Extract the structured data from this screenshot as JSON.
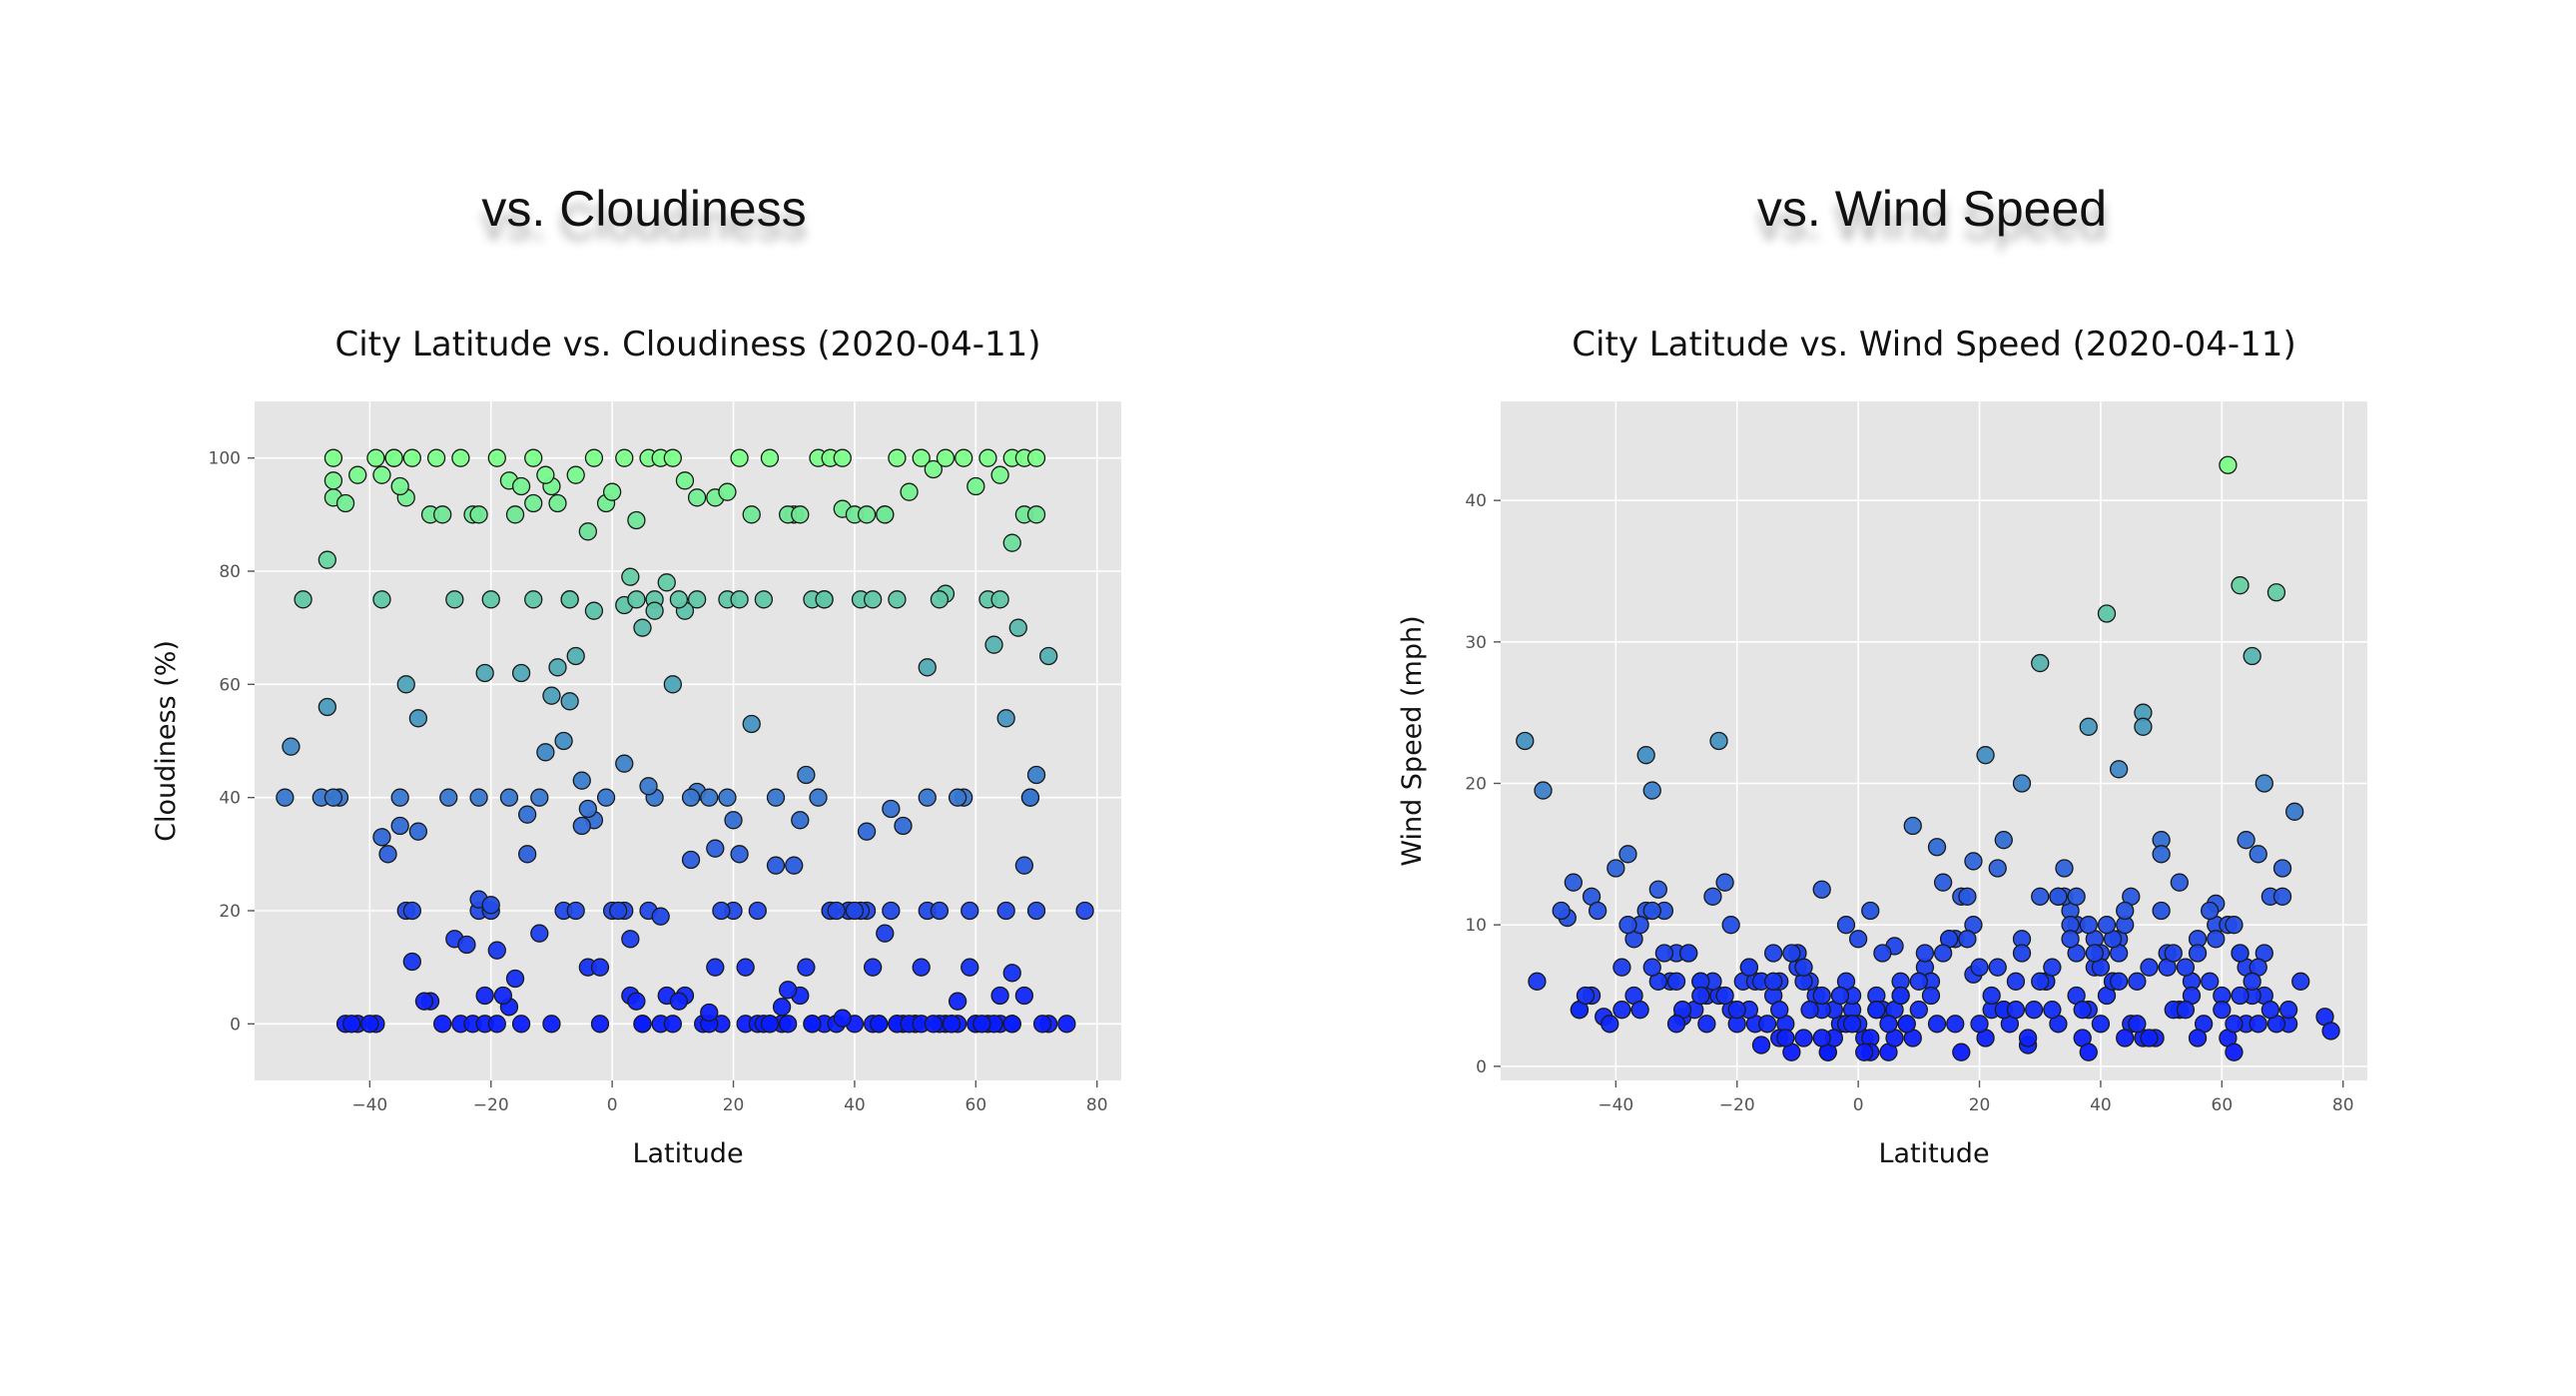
{
  "page": {
    "left_heading": "vs. Cloudiness",
    "right_heading": "vs. Wind Speed"
  },
  "chart_data": [
    {
      "type": "scatter",
      "title": "City Latitude vs. Cloudiness (2020-04-11)",
      "xlabel": "Latitude",
      "ylabel": "Cloudiness (%)",
      "xlim": [
        -59,
        84
      ],
      "ylim": [
        -10,
        110
      ],
      "xticks": [
        -40,
        -20,
        0,
        20,
        40,
        60,
        80
      ],
      "yticks": [
        0,
        20,
        40,
        60,
        80,
        100
      ],
      "grid": true,
      "colormap": [
        "#0a1cff",
        "#7cff8a"
      ],
      "x": [
        -54,
        -48,
        -45,
        -44,
        -42,
        -39,
        -38,
        -35,
        -34,
        -33,
        -30,
        -28,
        -26,
        -25,
        -23,
        -22,
        -21,
        -20,
        -19,
        -17,
        -15,
        -12,
        -10,
        -8,
        -6,
        -4,
        -2,
        0,
        2,
        3,
        5,
        6,
        8,
        10,
        12,
        15,
        17,
        18,
        20,
        22,
        24,
        26,
        28,
        30,
        32,
        33,
        35,
        37,
        39,
        40,
        42,
        44,
        46,
        48,
        50,
        52,
        54,
        56,
        58,
        60,
        62,
        64,
        65,
        66,
        68,
        70,
        72,
        75,
        78,
        -53,
        -47,
        -46,
        -43,
        -40,
        -37,
        -35,
        -33,
        -31,
        -27,
        -24,
        -22,
        -21,
        -19,
        -17,
        -16,
        -14,
        -12,
        -10,
        -7,
        -5,
        -3,
        -1,
        1,
        3,
        5,
        7,
        9,
        11,
        13,
        16,
        18,
        21,
        24,
        27,
        29,
        31,
        33,
        36,
        38,
        41,
        43,
        45,
        47,
        50,
        52,
        55,
        57,
        60,
        63,
        66,
        69,
        71,
        -51,
        -46,
        -38,
        -34,
        -32,
        -22,
        -20,
        -18,
        -14,
        -11,
        -8,
        -6,
        -4,
        -2,
        2,
        4,
        6,
        8,
        10,
        14,
        16,
        19,
        22,
        25,
        28,
        31,
        34,
        36,
        39,
        42,
        44,
        47,
        49,
        51,
        54,
        56,
        59,
        61,
        64,
        66,
        68,
        70,
        -47,
        -36,
        -34,
        -21,
        -15,
        -13,
        -9,
        -7,
        -5,
        -3,
        3,
        5,
        7,
        12,
        14,
        17,
        20,
        23,
        26,
        29,
        32,
        35,
        37,
        40,
        43,
        46,
        48,
        51,
        53,
        55,
        57,
        59,
        63,
        65,
        67,
        69,
        -46,
        -44,
        -38,
        -35,
        -32,
        -29,
        -26,
        -23,
        -20,
        -16,
        -13,
        -10,
        -7,
        -4,
        -1,
        2,
        4,
        7,
        9,
        11,
        13,
        16,
        19,
        21,
        25,
        27,
        30,
        33,
        35,
        38,
        41,
        43,
        45,
        47,
        52,
        54,
        57,
        62,
        64,
        66,
        68,
        70,
        72,
        -46,
        -42,
        -39,
        -36,
        -33,
        -30,
        -28,
        -25,
        -22,
        -19,
        -17,
        -15,
        -13,
        -11,
        -9,
        -6,
        -3,
        0,
        2,
        4,
        6,
        8,
        10,
        12,
        14,
        17,
        19,
        21,
        23,
        26,
        29,
        31,
        34,
        36,
        38,
        40,
        42,
        45,
        47,
        49,
        51,
        53,
        55,
        58,
        60,
        62,
        64,
        66,
        68,
        70
      ],
      "y": [
        40,
        40,
        40,
        0,
        0,
        0,
        33,
        40,
        20,
        11,
        4,
        0,
        15,
        0,
        0,
        20,
        0,
        20,
        0,
        40,
        0,
        40,
        0,
        20,
        20,
        10,
        0,
        20,
        20,
        15,
        0,
        20,
        0,
        0,
        5,
        0,
        10,
        0,
        20,
        0,
        0,
        0,
        0,
        28,
        10,
        0,
        0,
        0,
        20,
        0,
        20,
        0,
        20,
        0,
        0,
        20,
        20,
        0,
        40,
        0,
        0,
        0,
        20,
        0,
        5,
        20,
        0,
        0,
        20,
        49,
        56,
        40,
        0,
        0,
        30,
        35,
        20,
        4,
        40,
        14,
        22,
        5,
        13,
        3,
        8,
        37,
        16,
        58,
        57,
        43,
        36,
        40,
        20,
        5,
        0,
        40,
        5,
        4,
        29,
        0,
        20,
        30,
        20,
        28,
        0,
        5,
        0,
        20,
        1,
        20,
        0,
        16,
        0,
        0,
        40,
        0,
        0,
        0,
        0,
        9,
        40,
        0,
        75,
        100,
        97,
        93,
        34,
        40,
        21,
        5,
        30,
        48,
        50,
        65,
        38,
        10,
        46,
        4,
        42,
        19,
        60,
        75,
        2,
        40,
        10,
        0,
        3,
        36,
        40,
        20,
        20,
        34,
        0,
        0,
        0,
        10,
        0,
        0,
        20,
        0,
        5,
        0,
        28,
        44,
        82,
        100,
        60,
        62,
        62,
        75,
        63,
        75,
        35,
        73,
        79,
        70,
        75,
        73,
        41,
        31,
        36,
        53,
        0,
        6,
        44,
        75,
        20,
        20,
        10,
        38,
        35,
        0,
        0,
        76,
        4,
        10,
        67,
        54,
        70,
        40,
        93,
        92,
        75,
        95,
        54,
        100,
        75,
        90,
        75,
        90,
        92,
        95,
        75,
        87,
        92,
        74,
        75,
        73,
        78,
        75,
        40,
        40,
        75,
        75,
        75,
        40,
        90,
        75,
        75,
        91,
        75,
        75,
        90,
        75,
        63,
        75,
        40,
        75,
        75,
        85,
        90,
        90,
        65,
        96,
        97,
        100,
        100,
        100,
        90,
        90,
        100,
        90,
        100,
        96,
        95,
        100,
        97,
        92,
        97,
        100,
        94,
        100,
        89,
        100,
        100,
        100,
        96,
        93,
        93,
        94,
        100,
        90,
        100,
        90,
        90,
        100,
        100,
        100,
        90,
        90,
        90,
        100,
        94,
        100,
        98,
        100,
        100,
        95,
        100,
        97,
        100,
        100,
        100
      ]
    },
    {
      "type": "scatter",
      "title": "City Latitude vs. Wind Speed (2020-04-11)",
      "xlabel": "Latitude",
      "ylabel": "Wind Speed (mph)",
      "xlim": [
        -59,
        84
      ],
      "ylim": [
        -1,
        47
      ],
      "xticks": [
        -40,
        -20,
        0,
        20,
        40,
        60,
        80
      ],
      "yticks": [
        0,
        10,
        20,
        30,
        40
      ],
      "grid": true,
      "colormap": [
        "#0a1cff",
        "#7cff8a"
      ],
      "x": [
        -55,
        -52,
        -35,
        -34,
        -23,
        -38,
        -46,
        -40,
        -44,
        -48,
        -30,
        -26,
        -18,
        -14,
        -10,
        -6,
        -2,
        2,
        6,
        9,
        13,
        17,
        19,
        21,
        24,
        27,
        30,
        33,
        36,
        38,
        41,
        43,
        45,
        47,
        50,
        53,
        56,
        59,
        61,
        63,
        65,
        67,
        69,
        72,
        -53,
        -46,
        -42,
        -37,
        -33,
        -29,
        -25,
        -21,
        -17,
        -13,
        -9,
        -5,
        -1,
        3,
        7,
        11,
        15,
        19,
        23,
        27,
        31,
        35,
        39,
        43,
        47,
        51,
        55,
        59,
        63,
        67,
        71,
        77,
        -49,
        -44,
        -39,
        -35,
        -31,
        -27,
        -23,
        -19,
        -15,
        -11,
        -7,
        -3,
        1,
        5,
        9,
        13,
        17,
        21,
        25,
        29,
        33,
        37,
        41,
        45,
        49,
        53,
        57,
        61,
        65,
        69,
        73,
        78,
        -47,
        -43,
        -39,
        -36,
        -32,
        -28,
        -24,
        -20,
        -16,
        -12,
        -8,
        -4,
        0,
        4,
        8,
        12,
        16,
        20,
        24,
        28,
        32,
        36,
        40,
        44,
        48,
        52,
        56,
        60,
        64,
        68,
        -45,
        -41,
        -37,
        -33,
        -29,
        -25,
        -21,
        -17,
        -13,
        -9,
        -5,
        -1,
        3,
        7,
        11,
        15,
        19,
        23,
        27,
        31,
        35,
        39,
        43,
        47,
        51,
        55,
        59,
        63,
        67,
        71,
        -38,
        -34,
        -30,
        -26,
        -22,
        -18,
        -14,
        -10,
        -6,
        -2,
        2,
        6,
        10,
        14,
        18,
        22,
        26,
        30,
        34,
        38,
        42,
        46,
        50,
        54,
        58,
        62,
        66,
        70,
        -36,
        -32,
        -28,
        -24,
        -20,
        -16,
        -12,
        -8,
        -4,
        0,
        4,
        8,
        12,
        16,
        20,
        24,
        28,
        32,
        36,
        40,
        44,
        48,
        52,
        56,
        60,
        64,
        68,
        -34,
        -30,
        -26,
        -22,
        -18,
        -14,
        -10,
        -6,
        -2,
        2,
        6,
        10,
        14,
        18,
        22,
        26,
        30,
        34,
        38,
        42,
        46,
        50,
        54,
        58,
        62,
        66,
        70,
        -6,
        -3,
        -1,
        1,
        3,
        5,
        7,
        -9,
        -11,
        -13,
        36,
        38,
        40,
        42,
        44,
        39,
        41,
        43,
        37,
        35,
        33,
        61,
        63,
        65,
        62,
        64,
        66
      ],
      "y": [
        23,
        19.5,
        22,
        19.5,
        23,
        15,
        4,
        14,
        12,
        10.5,
        8,
        6,
        7,
        5,
        8,
        12.5,
        10,
        11,
        8.5,
        17,
        15.5,
        12,
        14.5,
        22,
        16,
        20,
        28.5,
        12,
        10,
        24,
        32,
        21,
        12,
        25,
        16,
        13,
        9,
        11.5,
        42.5,
        34,
        29,
        20,
        33.5,
        18,
        6,
        4,
        3.5,
        9,
        12.5,
        3.5,
        5,
        4,
        3,
        6,
        2,
        1,
        4,
        5,
        6,
        7,
        9,
        6.5,
        7,
        9,
        6,
        11,
        7,
        9,
        24,
        8,
        6,
        10,
        8,
        5,
        3,
        3.5,
        11,
        5,
        7,
        11,
        6,
        4,
        5,
        6,
        3,
        1,
        5,
        3,
        2,
        1,
        2,
        3,
        1,
        2,
        3,
        4,
        3,
        2,
        5,
        3,
        2,
        4,
        3,
        2,
        5,
        3,
        6,
        2.5,
        13,
        11,
        4,
        10,
        11,
        8,
        6,
        3,
        1.5,
        3,
        6,
        4,
        9,
        4,
        3,
        6,
        9,
        3,
        4,
        1.5,
        4,
        8,
        3,
        2,
        7,
        4,
        8,
        5,
        3,
        4,
        5,
        3,
        5,
        6,
        4,
        3,
        10,
        6,
        2,
        6,
        1,
        5,
        4,
        5,
        8,
        9,
        10,
        14,
        8,
        6,
        10,
        9,
        8,
        2,
        7,
        5,
        9,
        5,
        8,
        4,
        10,
        11,
        3,
        6,
        5,
        4,
        8,
        7,
        4,
        6,
        2,
        4,
        6,
        8,
        12,
        4,
        6,
        6,
        14,
        4,
        9,
        6,
        15,
        4,
        6,
        1,
        3,
        14,
        4,
        8,
        8,
        12,
        4,
        6,
        2,
        4,
        2,
        3,
        8,
        3,
        5,
        3,
        7,
        4,
        2,
        7,
        5,
        8,
        10,
        2,
        8,
        2,
        4,
        7,
        12,
        7,
        6,
        5,
        13,
        7,
        6,
        8,
        5,
        3,
        1,
        2,
        4,
        13,
        9,
        5,
        4,
        12,
        12,
        1,
        6,
        3,
        11,
        7,
        11,
        3,
        7,
        12,
        2,
        5,
        3,
        1,
        4,
        3,
        5,
        7,
        8,
        4,
        12,
        10,
        7,
        6,
        11,
        8,
        10,
        6,
        4,
        9,
        12,
        10,
        8,
        6,
        10,
        16,
        15
      ]
    }
  ]
}
